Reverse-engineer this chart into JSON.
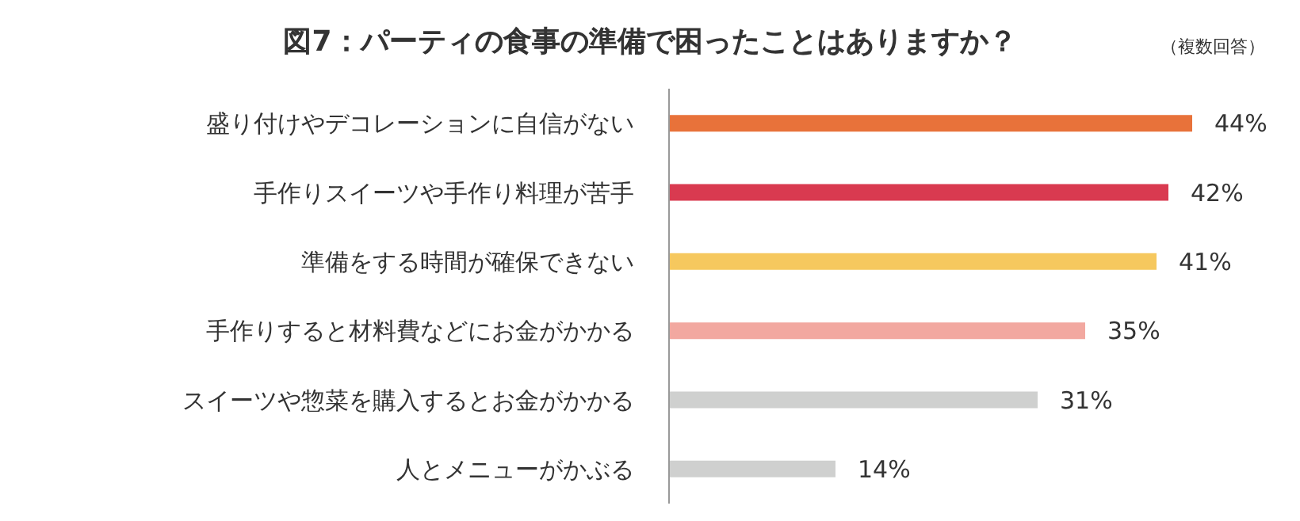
{
  "chart_data": {
    "type": "bar",
    "orientation": "horizontal",
    "title": "図7：パーティの食事の準備で困ったことはありますか？",
    "annotations": [
      "（複数回答）"
    ],
    "categories": [
      "盛り付けやデコレーションに自信がない",
      "手作りスイーツや手作り料理が苦手",
      "準備をする時間が確保できない",
      "手作りすると材料費などにお金がかかる",
      "スイーツや惣菜を購入するとお金がかかる",
      "人とメニューがかぶる"
    ],
    "values": [
      44,
      42,
      41,
      35,
      31,
      14
    ],
    "value_labels": [
      "44%",
      "42%",
      "41%",
      "35%",
      "31%",
      "14%"
    ],
    "colors": [
      "#e8723a",
      "#d93a50",
      "#f6c85e",
      "#f2a8a0",
      "#cfd0cf",
      "#cfd0cf"
    ]
  }
}
